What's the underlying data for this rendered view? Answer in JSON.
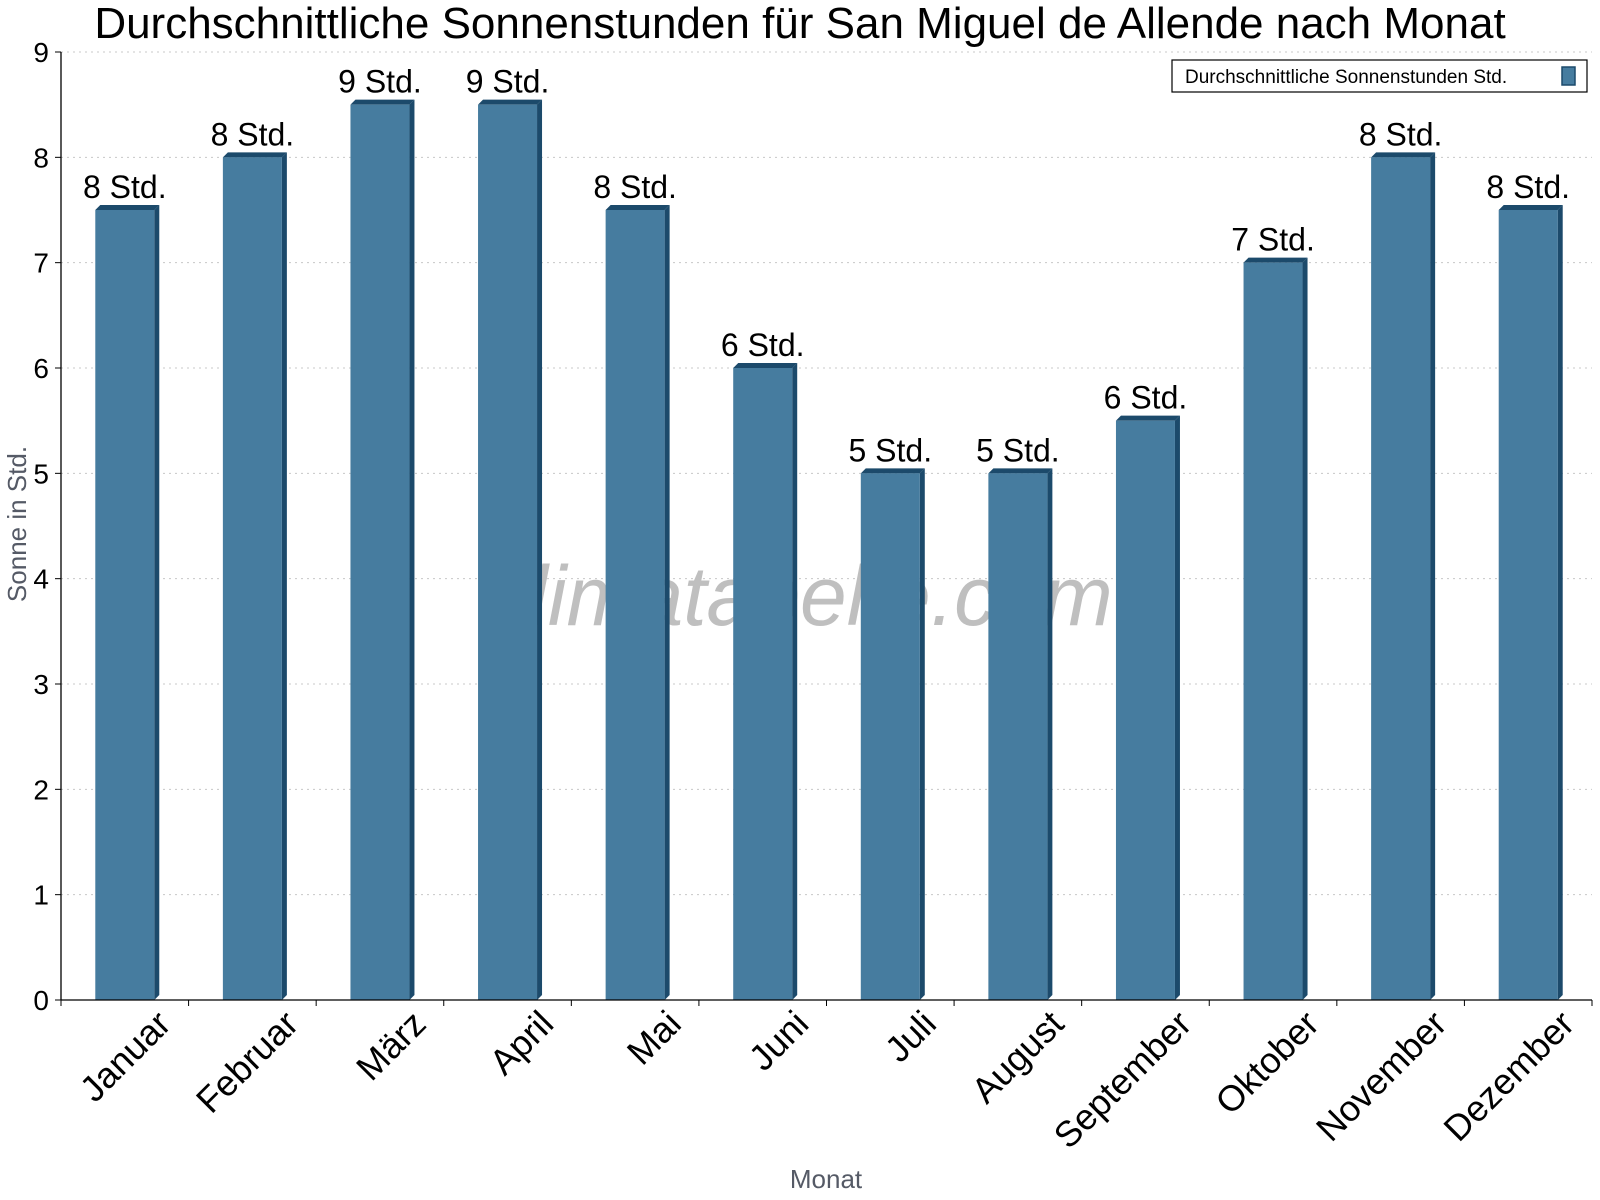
{
  "chart_data": {
    "type": "bar",
    "title": "Durchschnittliche Sonnenstunden für San Miguel de Allende nach Monat",
    "xlabel": "Monat",
    "ylabel": "Sonne in Std.",
    "ylim": [
      0,
      9
    ],
    "yticks": [
      0,
      1,
      2,
      3,
      4,
      5,
      6,
      7,
      8,
      9
    ],
    "grid": true,
    "legend_position": "top-right",
    "categories": [
      "Januar",
      "Februar",
      "März",
      "April",
      "Mai",
      "Juni",
      "Juli",
      "August",
      "September",
      "Oktober",
      "November",
      "Dezember"
    ],
    "series": [
      {
        "name": "Durchschnittliche Sonnenstunden Std.",
        "values": [
          7.5,
          8,
          8.5,
          8.5,
          7.5,
          6,
          5,
          5,
          5.5,
          7,
          8,
          7.5
        ],
        "labels": [
          "8 Std.",
          "8 Std.",
          "9 Std.",
          "9 Std.",
          "8 Std.",
          "6 Std.",
          "5 Std.",
          "5 Std.",
          "6 Std.",
          "7 Std.",
          "8 Std.",
          "8 Std."
        ]
      }
    ],
    "colors": {
      "bar": "#467c9f",
      "bar_side": "#1c4a6b",
      "grid": "#c8c8c8",
      "axis": "#000000"
    }
  },
  "watermark": "klimatabelle.com"
}
